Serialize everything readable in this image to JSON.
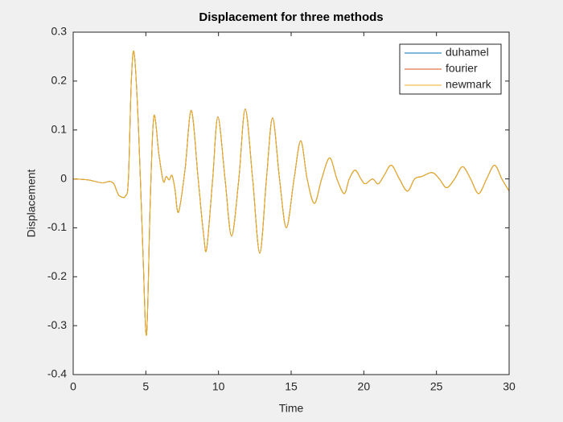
{
  "chart_data": {
    "type": "line",
    "title": "Displacement for three methods",
    "x_label": "Time",
    "y_label": "Displacement",
    "x": [
      0,
      1,
      2,
      2.5,
      2.8,
      3.0,
      3.2,
      3.6,
      3.8,
      4.0,
      4.2,
      4.5,
      4.8,
      5.05,
      5.3,
      5.55,
      5.9,
      6.2,
      6.4,
      6.6,
      6.8,
      7.0,
      7.25,
      7.7,
      8.13,
      8.6,
      8.97,
      9.19,
      9.6,
      9.96,
      10.45,
      10.9,
      11.4,
      11.84,
      12.35,
      12.84,
      13.3,
      13.72,
      14.2,
      14.67,
      15.2,
      15.66,
      16.1,
      16.6,
      17.1,
      17.65,
      18.15,
      18.65,
      19.0,
      19.4,
      19.8,
      20.1,
      20.6,
      21.0,
      21.45,
      21.9,
      22.45,
      23.0,
      23.5,
      24.0,
      24.7,
      25.2,
      25.7,
      26.25,
      26.8,
      27.35,
      27.9,
      28.45,
      29.0,
      29.5,
      30
    ],
    "series": [
      {
        "name": "duhamel",
        "color": "#0072bd",
        "values": [
          0,
          -0.002,
          -0.008,
          -0.005,
          -0.01,
          -0.025,
          -0.035,
          -0.035,
          0.0,
          0.2,
          0.257,
          0.1,
          -0.15,
          -0.318,
          -0.05,
          0.128,
          0.05,
          -0.005,
          0.005,
          -0.002,
          0.007,
          -0.02,
          -0.068,
          0.02,
          0.14,
          0.0,
          -0.113,
          -0.142,
          0.0,
          0.127,
          0.0,
          -0.117,
          0.0,
          0.143,
          0.0,
          -0.152,
          0.0,
          0.125,
          0.0,
          -0.1,
          0.0,
          0.078,
          0.0,
          -0.05,
          0.0,
          0.043,
          0.0,
          -0.03,
          0.0,
          0.018,
          0.0,
          -0.01,
          0.0,
          -0.01,
          0.01,
          0.028,
          0.0,
          -0.025,
          0.0,
          0.005,
          0.013,
          0.0,
          -0.018,
          0.0,
          0.025,
          0.0,
          -0.03,
          0.0,
          0.028,
          0.0,
          -0.025
        ]
      },
      {
        "name": "fourier",
        "color": "#d95319",
        "values": [
          0,
          -0.002,
          -0.008,
          -0.005,
          -0.01,
          -0.025,
          -0.035,
          -0.035,
          0.0,
          0.2,
          0.257,
          0.1,
          -0.15,
          -0.318,
          -0.05,
          0.128,
          0.05,
          -0.005,
          0.005,
          -0.002,
          0.007,
          -0.02,
          -0.068,
          0.02,
          0.14,
          0.0,
          -0.113,
          -0.142,
          0.0,
          0.127,
          0.0,
          -0.117,
          0.0,
          0.143,
          0.0,
          -0.152,
          0.0,
          0.125,
          0.0,
          -0.1,
          0.0,
          0.078,
          0.0,
          -0.05,
          0.0,
          0.043,
          0.0,
          -0.03,
          0.0,
          0.018,
          0.0,
          -0.01,
          0.0,
          -0.01,
          0.01,
          0.028,
          0.0,
          -0.025,
          0.0,
          0.005,
          0.013,
          0.0,
          -0.018,
          0.0,
          0.025,
          0.0,
          -0.03,
          0.0,
          0.028,
          0.0,
          -0.025
        ]
      },
      {
        "name": "newmark",
        "color": "#edb120",
        "values": [
          0,
          -0.002,
          -0.008,
          -0.005,
          -0.01,
          -0.025,
          -0.035,
          -0.035,
          0.0,
          0.2,
          0.257,
          0.1,
          -0.15,
          -0.318,
          -0.05,
          0.128,
          0.05,
          -0.005,
          0.005,
          -0.002,
          0.007,
          -0.02,
          -0.068,
          0.02,
          0.14,
          0.0,
          -0.113,
          -0.142,
          0.0,
          0.127,
          0.0,
          -0.117,
          0.0,
          0.143,
          0.0,
          -0.152,
          0.0,
          0.125,
          0.0,
          -0.1,
          0.0,
          0.078,
          0.0,
          -0.05,
          0.0,
          0.043,
          0.0,
          -0.03,
          0.0,
          0.018,
          0.0,
          -0.01,
          0.0,
          -0.01,
          0.01,
          0.028,
          0.0,
          -0.025,
          0.0,
          0.005,
          0.013,
          0.0,
          -0.018,
          0.0,
          0.025,
          0.0,
          -0.03,
          0.0,
          0.028,
          0.0,
          -0.025
        ]
      }
    ],
    "xlim": [
      0,
      30
    ],
    "xticks": [
      0,
      5,
      10,
      15,
      20,
      25,
      30
    ],
    "ylim": [
      -0.4,
      0.3
    ],
    "yticks": [
      -0.4,
      -0.3,
      -0.2,
      -0.1,
      0,
      0.1,
      0.2,
      0.3
    ],
    "legend": "top-right",
    "grid": false
  }
}
